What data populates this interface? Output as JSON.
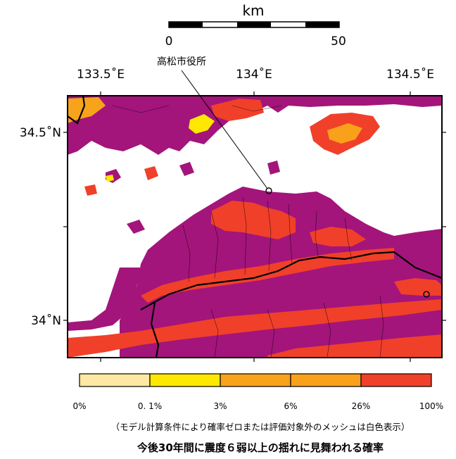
{
  "scale_bar": {
    "unit": "km",
    "start": "0",
    "end": "50"
  },
  "landmark": {
    "label": "高松市役所"
  },
  "lon_ticks": [
    "133.5˚E",
    "134˚E",
    "134.5˚E"
  ],
  "lat_ticks": [
    "34.5˚N",
    "34˚N"
  ],
  "colors": {
    "sea": "#ffffff",
    "c0": "#fde9a3",
    "c1": "#ffe800",
    "c2": "#f7a31b",
    "c3": "#f9a11b",
    "c4": "#f0402a",
    "c5": "#a3157a",
    "border": "#000000"
  },
  "legend": {
    "classes": [
      "#fde9a3",
      "#ffe800",
      "#f7a31b",
      "#f9a11b",
      "#f0402a",
      "#a3157a"
    ],
    "ticks": [
      "0%",
      "0. 1%",
      "3%",
      "6%",
      "26%",
      "100%"
    ]
  },
  "note": "（モデル計算条件により確率ゼロまたは評価対象外のメッシュは白色表示）",
  "title": "今後30年間に震度６弱以上の揺れに見舞われる確率"
}
